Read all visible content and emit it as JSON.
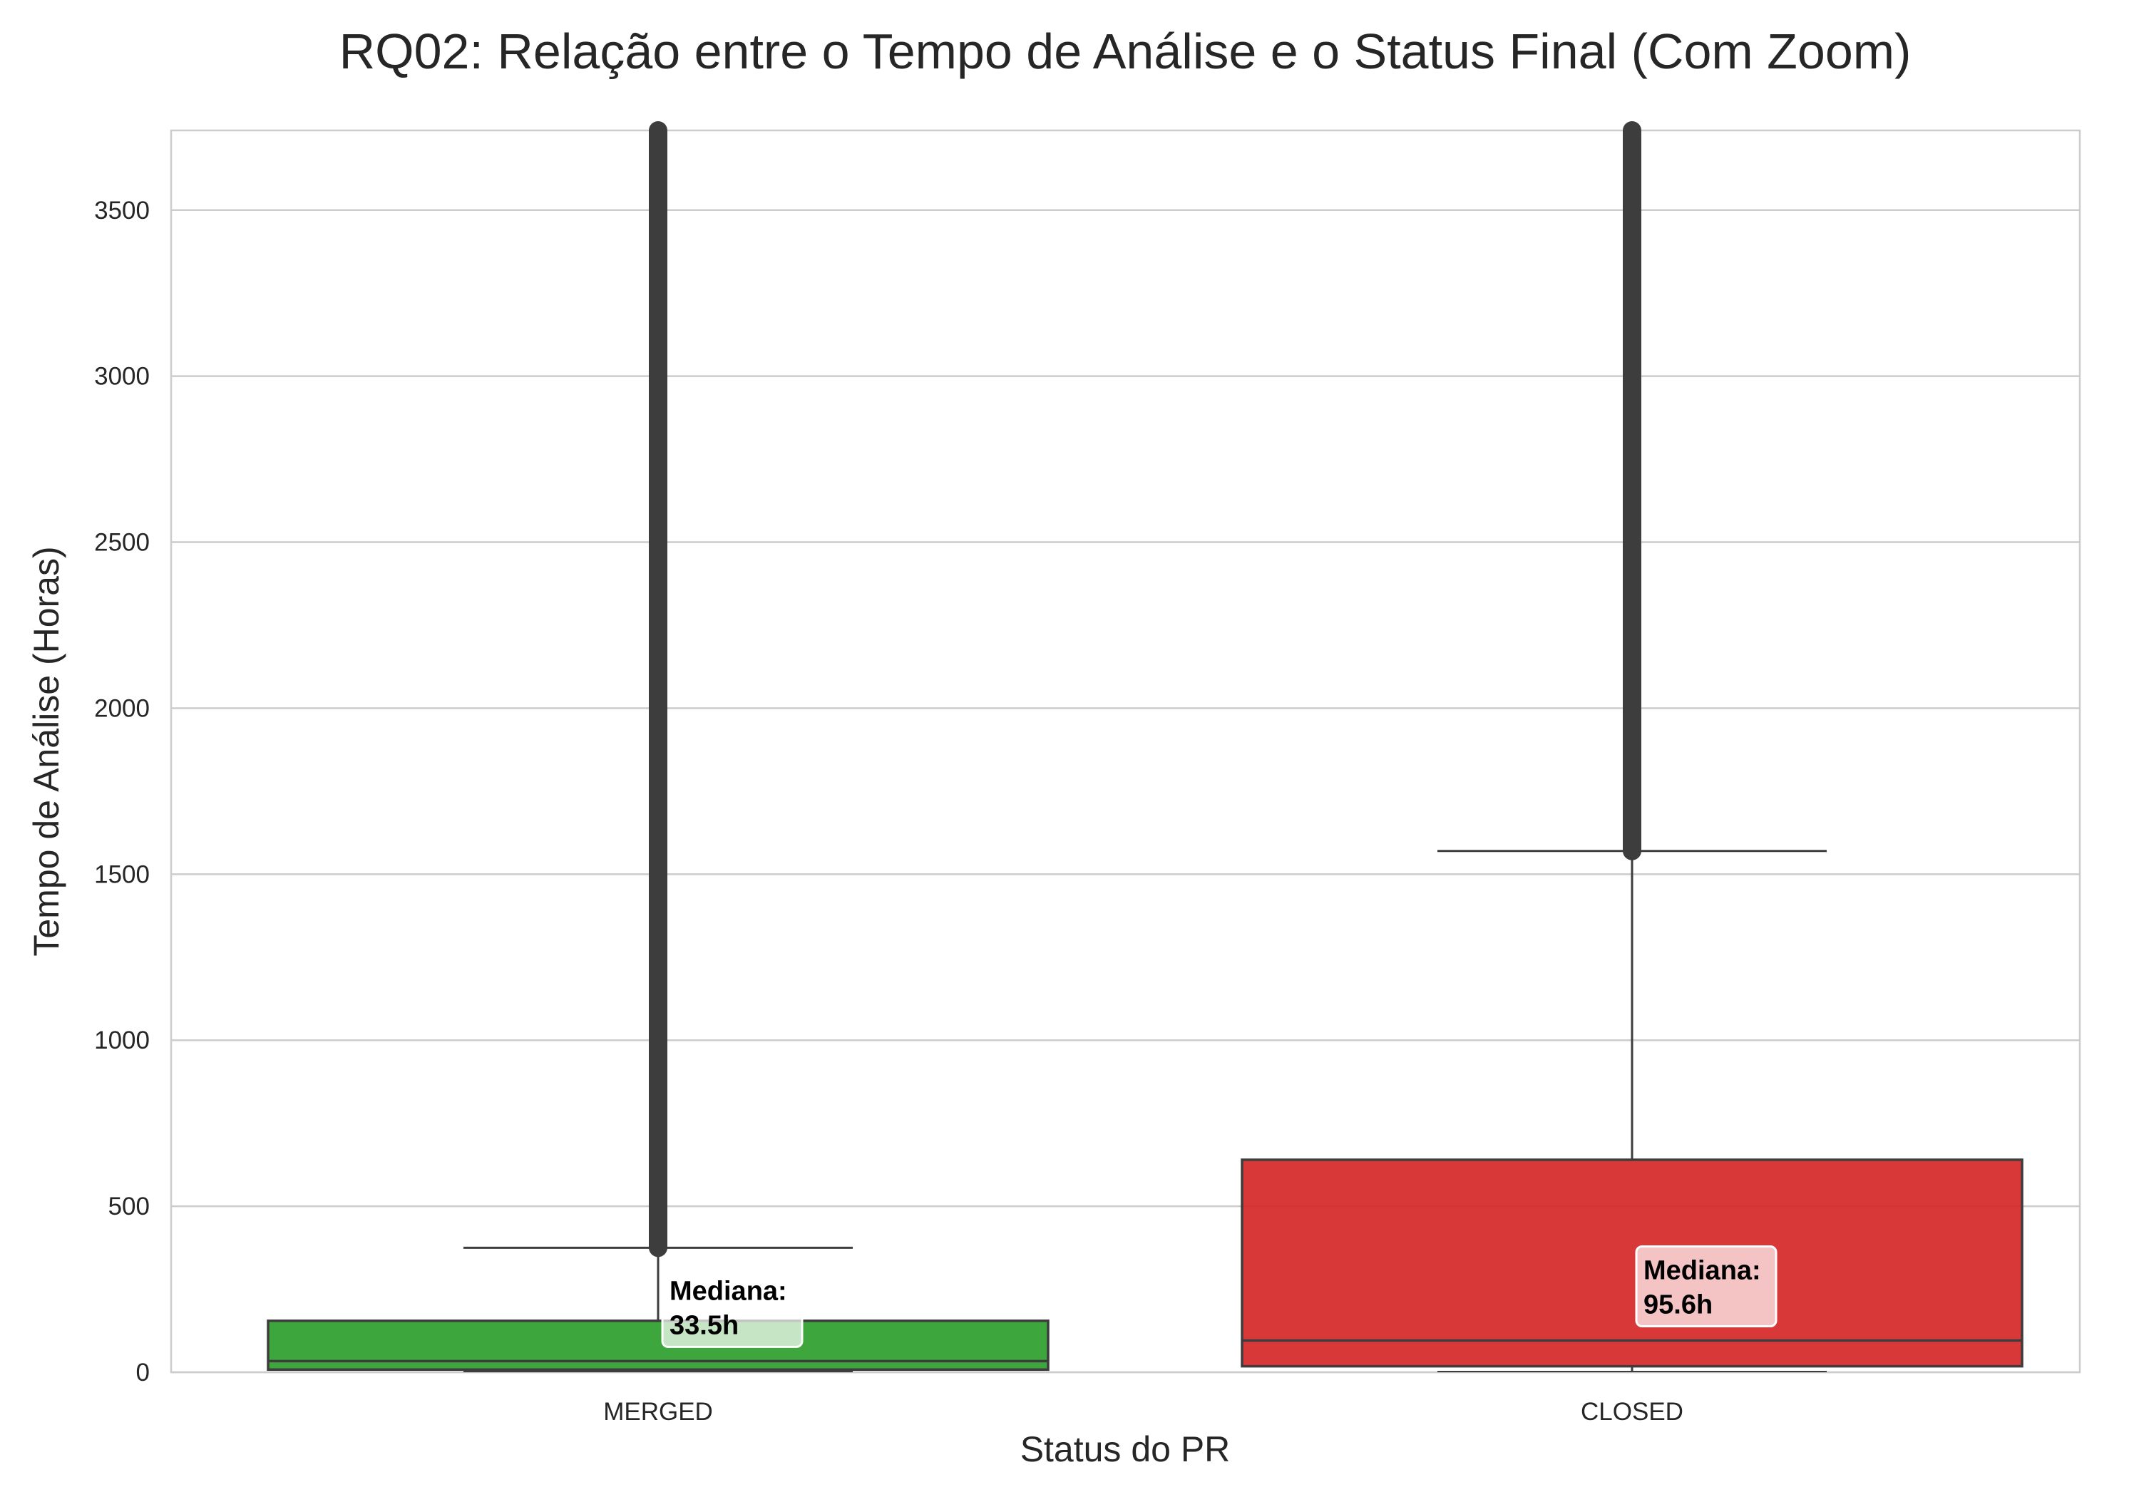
{
  "chart_data": {
    "type": "box",
    "title": "RQ02: Relação entre o Tempo de Análise e o Status Final (Com Zoom)",
    "xlabel": "Status do PR",
    "ylabel": "Tempo de Análise (Horas)",
    "ylim": [
      0,
      3740
    ],
    "yticks": [
      0,
      500,
      1000,
      1500,
      2000,
      2500,
      3000,
      3500
    ],
    "ytick_labels": [
      "0",
      "500",
      "1000",
      "1500",
      "2000",
      "2500",
      "3000",
      "3500"
    ],
    "grid": true,
    "categories": [
      "MERGED",
      "CLOSED"
    ],
    "boxes": [
      {
        "category": "MERGED",
        "color": "#2ca02c",
        "whisker_low": 0,
        "q1": 8,
        "median": 33.5,
        "q3": 155,
        "whisker_high": 375,
        "outliers_from": 375,
        "outliers_to": 3740,
        "annotation": [
          "Mediana:",
          "33.5h"
        ]
      },
      {
        "category": "CLOSED",
        "color": "#d62728",
        "whisker_low": 0,
        "q1": 18,
        "median": 95.6,
        "q3": 640,
        "whisker_high": 1570,
        "outliers_from": 1570,
        "outliers_to": 3740,
        "annotation": [
          "Mediana:",
          "95.6h"
        ]
      }
    ]
  }
}
